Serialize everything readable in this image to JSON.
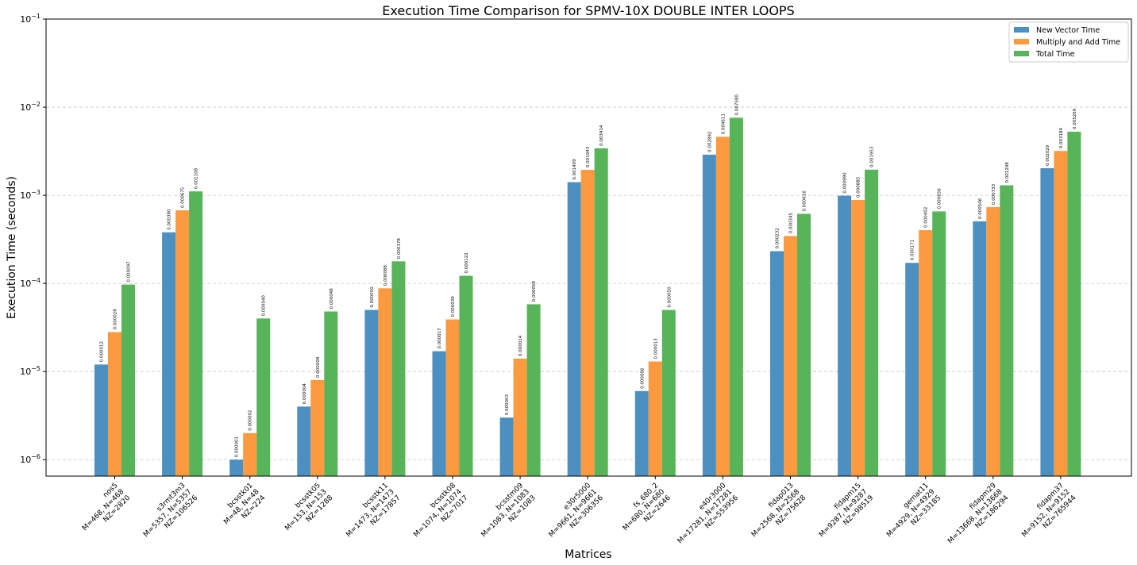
{
  "chart_data": {
    "type": "bar",
    "title": "Execution Time Comparison for SPMV-10X DOUBLE INTER LOOPS",
    "xlabel": "Matrices",
    "ylabel": "Execution Time (seconds)",
    "yscale": "log",
    "ylim": [
      6.5e-07,
      0.1
    ],
    "grid": "y-dashed",
    "legend_position": "top-right",
    "categories": [
      [
        "nos5",
        "M=468, N=468",
        "NZ=2820"
      ],
      [
        "s3rmt3m3",
        "M=5357, N=5357",
        "NZ=106526"
      ],
      [
        "bcsstk01",
        "M=48, N=48",
        "NZ=224"
      ],
      [
        "bcsstk05",
        "M=153, N=153",
        "NZ=1288"
      ],
      [
        "bcsstk11",
        "M=1473, N=1473",
        "NZ=17857"
      ],
      [
        "bcsstk08",
        "M=1074, N=1074",
        "NZ=7017"
      ],
      [
        "bcsstm09",
        "M=1083, N=1083",
        "NZ=1083"
      ],
      [
        "e30r5000",
        "M=9661, N=9661",
        "NZ=306356"
      ],
      [
        "fs_680_2",
        "M=680, N=680",
        "NZ=2646"
      ],
      [
        "e40r3000",
        "M=17281, N=17281",
        "NZ=553956"
      ],
      [
        "fidap013",
        "M=2568, N=2568",
        "NZ=75628"
      ],
      [
        "fidapm15",
        "M=9287, N=9287",
        "NZ=98519"
      ],
      [
        "gemat11",
        "M=4929, N=4929",
        "NZ=33185"
      ],
      [
        "fidapm29",
        "M=13668, N=13668",
        "NZ=186294"
      ],
      [
        "fidapm37",
        "M=9152, N=9152",
        "NZ=765944"
      ]
    ],
    "series": [
      {
        "name": "New Vector Time",
        "color": "#4c8fc1",
        "values": [
          1.2e-05,
          0.00038,
          1e-06,
          4e-06,
          5e-05,
          1.7e-05,
          3e-06,
          0.001409,
          6e-06,
          0.002892,
          0.000232,
          0.00099,
          0.000171,
          0.000506,
          0.002029
        ],
        "labels": [
          "0.000012",
          "0.000380",
          "0.000001",
          "0.000004",
          "0.000050",
          "0.000017",
          "0.000003",
          "0.001409",
          "0.000006",
          "0.002892",
          "0.000232",
          "0.000990",
          "0.000171",
          "0.000506",
          "0.002029"
        ]
      },
      {
        "name": "Multiply and Add Time",
        "color": "#fd9a3f",
        "values": [
          2.8e-05,
          0.000675,
          2e-06,
          8e-06,
          8.8e-05,
          3.9e-05,
          1.4e-05,
          0.001943,
          1.3e-05,
          0.004611,
          0.000345,
          0.000885,
          0.000402,
          0.000733,
          0.003184
        ],
        "labels": [
          "0.000028",
          "0.000675",
          "0.000002",
          "0.000008",
          "0.000088",
          "0.000039",
          "0.000014",
          "0.001943",
          "0.000013",
          "0.004611",
          "0.000345",
          "0.000885",
          "0.000402",
          "0.000733",
          "0.003184"
        ]
      },
      {
        "name": "Total Time",
        "color": "#58b458",
        "values": [
          9.7e-05,
          0.001108,
          4e-05,
          4.8e-05,
          0.000178,
          0.000122,
          5.8e-05,
          0.003414,
          5e-05,
          0.00758,
          0.000616,
          0.001953,
          0.000656,
          0.001298,
          0.005269
        ],
        "labels": [
          "0.000097",
          "0.001108",
          "0.000040",
          "0.000048",
          "0.000178",
          "0.000122",
          "0.000058",
          "0.003414",
          "0.000050",
          "0.007580",
          "0.000616",
          "0.001953",
          "0.000656",
          "0.001298",
          "0.005269"
        ]
      }
    ],
    "yticks": [
      {
        "value": 1e-06,
        "base": "10",
        "exp": "−6"
      },
      {
        "value": 1e-05,
        "base": "10",
        "exp": "−5"
      },
      {
        "value": 0.0001,
        "base": "10",
        "exp": "−4"
      },
      {
        "value": 0.001,
        "base": "10",
        "exp": "−3"
      },
      {
        "value": 0.01,
        "base": "10",
        "exp": "−2"
      },
      {
        "value": 0.1,
        "base": "10",
        "exp": "−1"
      }
    ]
  }
}
